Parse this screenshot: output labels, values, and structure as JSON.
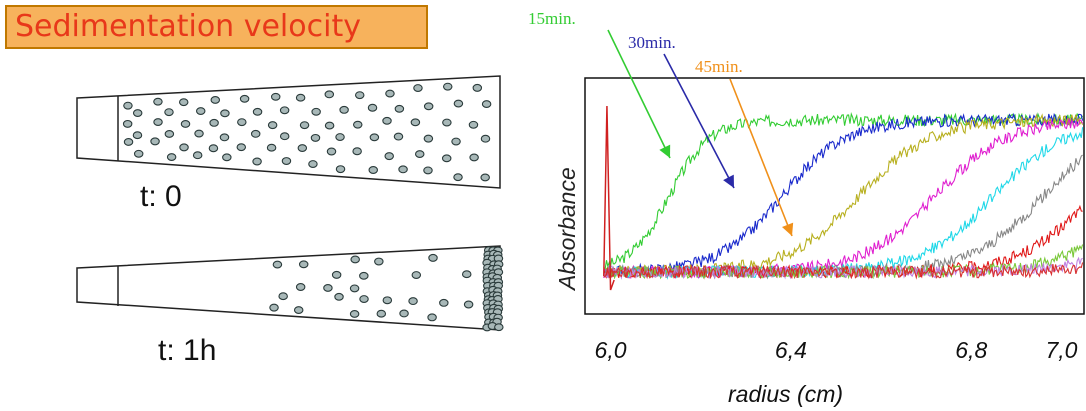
{
  "header": {
    "title": "Sedimentation velocity"
  },
  "cells": [
    {
      "label": "t: 0",
      "state": "uniform"
    },
    {
      "label": "t: 1h",
      "state": "sedimented"
    }
  ],
  "chart_data": {
    "type": "line",
    "xlabel": "radius (cm)",
    "ylabel": "Absorbance",
    "xlim": [
      5.95,
      7.05
    ],
    "ylim": [
      0,
      1
    ],
    "x_ticks": [
      "6,0",
      "6,4",
      "6,8",
      "7,0"
    ],
    "x_tick_values": [
      6.0,
      6.4,
      6.8,
      7.0
    ],
    "plateau": 0.9,
    "baseline": 0.14,
    "series": [
      {
        "color": "#33cc33",
        "midpoint": 6.13,
        "width": 0.045
      },
      {
        "color": "#1a2acc",
        "midpoint": 6.38,
        "width": 0.07
      },
      {
        "color": "#b8b020",
        "midpoint": 6.55,
        "width": 0.08
      },
      {
        "color": "#e020d0",
        "midpoint": 6.72,
        "width": 0.08
      },
      {
        "color": "#20d8e8",
        "midpoint": 6.85,
        "width": 0.08
      },
      {
        "color": "#888888",
        "midpoint": 6.96,
        "width": 0.08
      },
      {
        "color": "#e01818",
        "midpoint": 7.07,
        "width": 0.08
      },
      {
        "color": "#7ac83a",
        "midpoint": 7.18,
        "width": 0.08
      },
      {
        "color": "#c080e0",
        "midpoint": 7.26,
        "width": 0.08
      },
      {
        "color": "#d83030",
        "midpoint": 7.32,
        "width": 0.08
      }
    ],
    "annotations": [
      {
        "text": "15min.",
        "color": "#33cc33"
      },
      {
        "text": "30min.",
        "color": "#2a2aa8"
      },
      {
        "text": "45min.",
        "color": "#f0901a"
      }
    ]
  }
}
